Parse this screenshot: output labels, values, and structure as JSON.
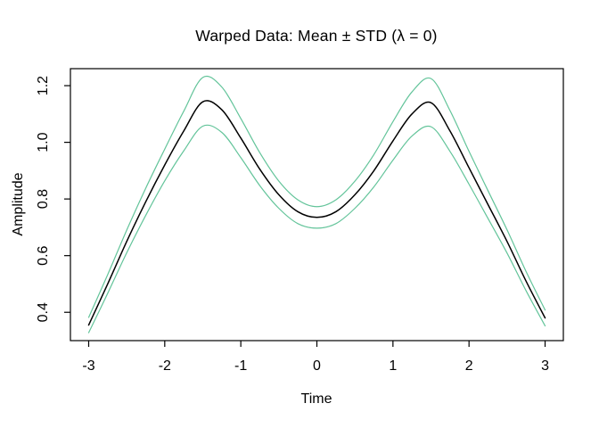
{
  "title": "Warped Data: Mean ± STD (λ = 0)",
  "axes": {
    "x": {
      "label": "Time",
      "tick_values": [
        -3,
        -2,
        -1,
        0,
        1,
        2,
        3
      ],
      "tick_labels": [
        "-3",
        "-2",
        "-1",
        "0",
        "1",
        "2",
        "3"
      ]
    },
    "y": {
      "label": "Amplitude",
      "tick_values": [
        0.4,
        0.6,
        0.8,
        1.0,
        1.2
      ],
      "tick_labels": [
        "0.4",
        "0.6",
        "0.8",
        "1.0",
        "1.2"
      ]
    }
  },
  "colors": {
    "mean_line": "#000000",
    "std_band_line": "#63c49a",
    "axis": "#000000",
    "background": "#ffffff"
  },
  "chart_data": {
    "type": "line",
    "title": "Warped Data: Mean ± STD (λ = 0)",
    "xlabel": "Time",
    "ylabel": "Amplitude",
    "xlim": [
      -3.24,
      3.24
    ],
    "ylim": [
      0.3,
      1.26
    ],
    "grid": false,
    "legend": "none",
    "x": [
      -3,
      -2.75,
      -2.5,
      -2.25,
      -2,
      -1.75,
      -1.5,
      -1.25,
      -1,
      -0.75,
      -0.5,
      -0.25,
      0,
      0.25,
      0.5,
      0.75,
      1,
      1.25,
      1.5,
      1.75,
      2,
      2.25,
      2.5,
      2.75,
      3
    ],
    "series": [
      {
        "name": "mean",
        "color": "#000000",
        "width": 1.5,
        "values": [
          0.355,
          0.5,
          0.65,
          0.79,
          0.92,
          1.04,
          1.143,
          1.115,
          1.015,
          0.905,
          0.815,
          0.755,
          0.735,
          0.755,
          0.815,
          0.9,
          1.005,
          1.1,
          1.14,
          1.04,
          0.91,
          0.78,
          0.65,
          0.51,
          0.38
        ]
      },
      {
        "name": "mean_plus_std",
        "color": "#63c49a",
        "width": 1.2,
        "values": [
          0.382,
          0.533,
          0.69,
          0.838,
          0.976,
          1.11,
          1.229,
          1.195,
          1.084,
          0.963,
          0.863,
          0.797,
          0.773,
          0.797,
          0.863,
          0.957,
          1.073,
          1.178,
          1.225,
          1.112,
          0.968,
          0.829,
          0.691,
          0.544,
          0.408
        ]
      },
      {
        "name": "mean_minus_std",
        "color": "#63c49a",
        "width": 1.2,
        "values": [
          0.328,
          0.467,
          0.61,
          0.742,
          0.864,
          0.97,
          1.057,
          1.035,
          0.946,
          0.847,
          0.767,
          0.713,
          0.697,
          0.713,
          0.767,
          0.843,
          0.937,
          1.022,
          1.055,
          0.968,
          0.852,
          0.731,
          0.609,
          0.476,
          0.352
        ]
      }
    ]
  }
}
